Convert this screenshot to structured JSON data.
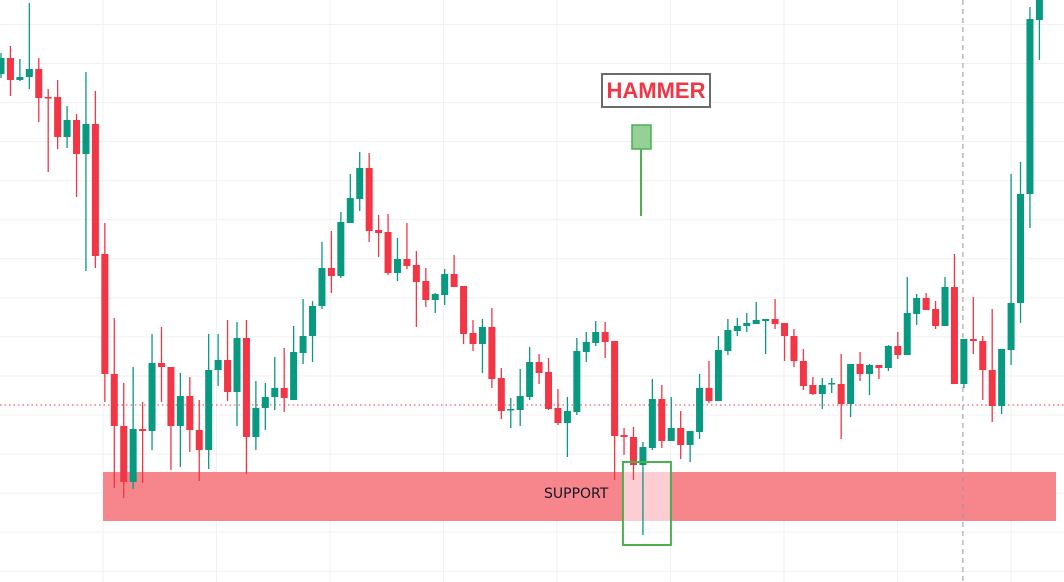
{
  "chart_data": {
    "type": "candlestick",
    "title": "",
    "xlabel": "",
    "ylabel": "",
    "ylim": [
      0,
      600
    ],
    "grid": true,
    "colors": {
      "up": "#089981",
      "down": "#f23645",
      "support_zone": "#f7868c",
      "hammer_marker": "#4caf50",
      "reference_line": "#f23645"
    },
    "candle_format": [
      "open",
      "high",
      "low",
      "close"
    ],
    "candles": [
      [
        526,
        547,
        522,
        542
      ],
      [
        542,
        554,
        504,
        520
      ],
      [
        520,
        541,
        519,
        523
      ],
      [
        523,
        597,
        511,
        531
      ],
      [
        531,
        542,
        478,
        502
      ],
      [
        503,
        511,
        428,
        502
      ],
      [
        503,
        520,
        451,
        463
      ],
      [
        463,
        494,
        452,
        480
      ],
      [
        480,
        486,
        403,
        446
      ],
      [
        446,
        528,
        329,
        476
      ],
      [
        476,
        509,
        332,
        344
      ],
      [
        346,
        377,
        198,
        226
      ],
      [
        226,
        282,
        112,
        174
      ],
      [
        174,
        217,
        102,
        118
      ],
      [
        118,
        233,
        111,
        171
      ],
      [
        171,
        198,
        117,
        169
      ],
      [
        169,
        266,
        150,
        237
      ],
      [
        237,
        273,
        198,
        233
      ],
      [
        233,
        233,
        130,
        174
      ],
      [
        174,
        227,
        133,
        204
      ],
      [
        204,
        223,
        148,
        170
      ],
      [
        170,
        200,
        119,
        150
      ],
      [
        150,
        266,
        131,
        230
      ],
      [
        230,
        266,
        214,
        240
      ],
      [
        240,
        280,
        199,
        208
      ],
      [
        208,
        278,
        174,
        262
      ],
      [
        262,
        280,
        126,
        163
      ],
      [
        163,
        219,
        150,
        192
      ],
      [
        192,
        217,
        170,
        203
      ],
      [
        203,
        243,
        190,
        212
      ],
      [
        212,
        252,
        188,
        202
      ],
      [
        200,
        274,
        200,
        248
      ],
      [
        247,
        301,
        236,
        264
      ],
      [
        264,
        299,
        238,
        294
      ],
      [
        294,
        358,
        291,
        332
      ],
      [
        332,
        369,
        307,
        324
      ],
      [
        324,
        388,
        322,
        378
      ],
      [
        377,
        426,
        377,
        402
      ],
      [
        401,
        448,
        389,
        432
      ],
      [
        432,
        447,
        358,
        369
      ],
      [
        370,
        385,
        343,
        367
      ],
      [
        368,
        386,
        325,
        327
      ],
      [
        327,
        362,
        319,
        341
      ],
      [
        341,
        377,
        331,
        334
      ],
      [
        335,
        349,
        273,
        318
      ],
      [
        319,
        332,
        293,
        300
      ],
      [
        300,
        307,
        287,
        306
      ],
      [
        305,
        331,
        295,
        326
      ],
      [
        326,
        345,
        313,
        313
      ],
      [
        314,
        314,
        256,
        266
      ],
      [
        267,
        280,
        249,
        256
      ],
      [
        256,
        281,
        227,
        273
      ],
      [
        273,
        292,
        212,
        221
      ],
      [
        222,
        232,
        181,
        189
      ],
      [
        190,
        202,
        172,
        191
      ],
      [
        190,
        231,
        174,
        204
      ],
      [
        203,
        253,
        200,
        238
      ],
      [
        238,
        246,
        216,
        227
      ],
      [
        228,
        242,
        190,
        191
      ],
      [
        192,
        211,
        175,
        177
      ],
      [
        177,
        203,
        143,
        189
      ],
      [
        188,
        262,
        185,
        249
      ],
      [
        248,
        268,
        238,
        258
      ],
      [
        257,
        279,
        254,
        268
      ],
      [
        268,
        278,
        242,
        258
      ],
      [
        259,
        259,
        120,
        164
      ],
      [
        165,
        172,
        145,
        163
      ],
      [
        163,
        173,
        120,
        135
      ],
      [
        135,
        158,
        65,
        153
      ],
      [
        152,
        221,
        150,
        201
      ],
      [
        201,
        215,
        152,
        159
      ],
      [
        159,
        203,
        159,
        172
      ],
      [
        172,
        189,
        141,
        155
      ],
      [
        155,
        169,
        138,
        169
      ],
      [
        168,
        226,
        161,
        212
      ],
      [
        212,
        239,
        197,
        199
      ],
      [
        199,
        264,
        199,
        250
      ],
      [
        249,
        281,
        245,
        270
      ],
      [
        269,
        282,
        264,
        274
      ],
      [
        274,
        287,
        268,
        277
      ],
      [
        276,
        298,
        276,
        280
      ],
      [
        279,
        281,
        246,
        281
      ],
      [
        281,
        301,
        271,
        276
      ],
      [
        277,
        277,
        239,
        264
      ],
      [
        264,
        271,
        233,
        239
      ],
      [
        239,
        251,
        210,
        214
      ],
      [
        215,
        223,
        205,
        206
      ],
      [
        206,
        222,
        191,
        215
      ],
      [
        216,
        222,
        207,
        217
      ],
      [
        216,
        246,
        161,
        196
      ],
      [
        196,
        236,
        183,
        236
      ],
      [
        236,
        248,
        219,
        226
      ],
      [
        226,
        236,
        205,
        235
      ],
      [
        235,
        235,
        221,
        232
      ],
      [
        232,
        255,
        229,
        254
      ],
      [
        254,
        268,
        241,
        245
      ],
      [
        245,
        323,
        245,
        287
      ],
      [
        286,
        306,
        275,
        302
      ],
      [
        302,
        307,
        290,
        290
      ],
      [
        291,
        299,
        271,
        274
      ],
      [
        274,
        323,
        274,
        313
      ],
      [
        313,
        346,
        216,
        216
      ],
      [
        216,
        261,
        212,
        261
      ],
      [
        261,
        303,
        246,
        259
      ],
      [
        259,
        264,
        200,
        230
      ],
      [
        230,
        291,
        178,
        194
      ],
      [
        194,
        251,
        186,
        251
      ],
      [
        250,
        426,
        235,
        297
      ],
      [
        297,
        438,
        277,
        406
      ],
      [
        406,
        593,
        372,
        581
      ],
      [
        580,
        610,
        540,
        605
      ]
    ],
    "support_zone": {
      "label": "SUPPORT",
      "low": 79,
      "high": 128
    },
    "hammer_annotation": {
      "label": "HAMMER",
      "candle_index": 68
    },
    "reference_price": 195,
    "crosshair_candle_index": 102
  }
}
